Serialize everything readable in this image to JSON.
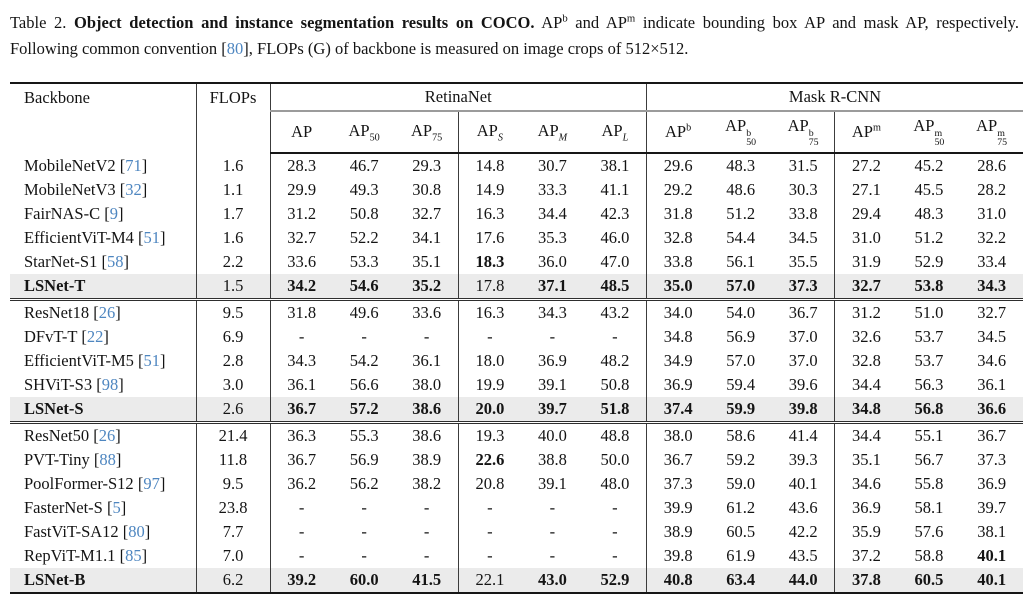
{
  "colors": {
    "cite_blue": "#4e86c0",
    "row_highlight": "#ebebeb",
    "rule_dark": "#161616",
    "rule_gray": "#9b9b9b"
  },
  "caption": {
    "segments": [
      {
        "t": "plain",
        "v": "Table 2.  "
      },
      {
        "t": "bold",
        "v": "Object detection and instance segmentation results on COCO."
      },
      {
        "t": "plain",
        "v": " AP"
      },
      {
        "t": "sup",
        "v": "b"
      },
      {
        "t": "plain",
        "v": " and AP"
      },
      {
        "t": "sup",
        "v": "m"
      },
      {
        "t": "plain",
        "v": " indicate bounding box AP and mask AP, respectively. Following common convention ["
      },
      {
        "t": "cite",
        "v": "80"
      },
      {
        "t": "plain",
        "v": "], FLOPs (G) of backbone is measured on image crops of 512×512."
      }
    ]
  },
  "table": {
    "col_headers": {
      "backbone": "Backbone",
      "flops": "FLOPs",
      "retinanet": "RetinaNet",
      "maskrcnn": "Mask R-CNN",
      "metrics": [
        {
          "base": "AP"
        },
        {
          "base": "AP",
          "sub": "50"
        },
        {
          "base": "AP",
          "sub": "75"
        },
        {
          "base": "AP",
          "sub": "S",
          "subItalic": true
        },
        {
          "base": "AP",
          "sub": "M",
          "subItalic": true
        },
        {
          "base": "AP",
          "sub": "L",
          "subItalic": true
        },
        {
          "base": "AP",
          "sup": "b"
        },
        {
          "base": "AP",
          "sup": "b",
          "sub": "50"
        },
        {
          "base": "AP",
          "sup": "b",
          "sub": "75"
        },
        {
          "base": "AP",
          "sup": "m"
        },
        {
          "base": "AP",
          "sup": "m",
          "sub": "50"
        },
        {
          "base": "AP",
          "sup": "m",
          "sub": "75"
        }
      ]
    },
    "groups": [
      {
        "rows": [
          {
            "name": "MobileNetV2",
            "cite": "71",
            "flops": "1.6",
            "vals": [
              "28.3",
              "46.7",
              "29.3",
              "14.8",
              "30.7",
              "38.1",
              "29.6",
              "48.3",
              "31.5",
              "27.2",
              "45.2",
              "28.6"
            ]
          },
          {
            "name": "MobileNetV3",
            "cite": "32",
            "flops": "1.1",
            "vals": [
              "29.9",
              "49.3",
              "30.8",
              "14.9",
              "33.3",
              "41.1",
              "29.2",
              "48.6",
              "30.3",
              "27.1",
              "45.5",
              "28.2"
            ]
          },
          {
            "name": "FairNAS-C",
            "cite": "9",
            "flops": "1.7",
            "vals": [
              "31.2",
              "50.8",
              "32.7",
              "16.3",
              "34.4",
              "42.3",
              "31.8",
              "51.2",
              "33.8",
              "29.4",
              "48.3",
              "31.0"
            ]
          },
          {
            "name": "EfficientViT-M4",
            "cite": "51",
            "flops": "1.6",
            "vals": [
              "32.7",
              "52.2",
              "34.1",
              "17.6",
              "35.3",
              "46.0",
              "32.8",
              "54.4",
              "34.5",
              "31.0",
              "51.2",
              "32.2"
            ]
          },
          {
            "name": "StarNet-S1",
            "cite": "58",
            "flops": "2.2",
            "vals": [
              "33.6",
              "53.3",
              "35.1",
              {
                "v": "18.3",
                "b": 1
              },
              "36.0",
              "47.0",
              "33.8",
              "56.1",
              "35.5",
              "31.9",
              "52.9",
              "33.4"
            ]
          },
          {
            "name": "LSNet-T",
            "bold": 1,
            "shaded": 1,
            "flops": "1.5",
            "vals": [
              {
                "v": "34.2",
                "b": 1
              },
              {
                "v": "54.6",
                "b": 1
              },
              {
                "v": "35.2",
                "b": 1
              },
              "17.8",
              {
                "v": "37.1",
                "b": 1
              },
              {
                "v": "48.5",
                "b": 1
              },
              {
                "v": "35.0",
                "b": 1
              },
              {
                "v": "57.0",
                "b": 1
              },
              {
                "v": "37.3",
                "b": 1
              },
              {
                "v": "32.7",
                "b": 1
              },
              {
                "v": "53.8",
                "b": 1
              },
              {
                "v": "34.3",
                "b": 1
              }
            ]
          }
        ]
      },
      {
        "rows": [
          {
            "name": "ResNet18",
            "cite": "26",
            "flops": "9.5",
            "vals": [
              "31.8",
              "49.6",
              "33.6",
              "16.3",
              "34.3",
              "43.2",
              "34.0",
              "54.0",
              "36.7",
              "31.2",
              "51.0",
              "32.7"
            ]
          },
          {
            "name": "DFvT-T",
            "cite": "22",
            "flops": "6.9",
            "vals": [
              "-",
              "-",
              "-",
              "-",
              "-",
              "-",
              "34.8",
              "56.9",
              "37.0",
              "32.6",
              "53.7",
              "34.5"
            ]
          },
          {
            "name": "EfficientViT-M5",
            "cite": "51",
            "flops": "2.8",
            "vals": [
              "34.3",
              "54.2",
              "36.1",
              "18.0",
              "36.9",
              "48.2",
              "34.9",
              "57.0",
              "37.0",
              "32.8",
              "53.7",
              "34.6"
            ]
          },
          {
            "name": "SHViT-S3",
            "cite": "98",
            "flops": "3.0",
            "vals": [
              "36.1",
              "56.6",
              "38.0",
              "19.9",
              "39.1",
              "50.8",
              "36.9",
              "59.4",
              "39.6",
              "34.4",
              "56.3",
              "36.1"
            ]
          },
          {
            "name": "LSNet-S",
            "bold": 1,
            "shaded": 1,
            "flops": "2.6",
            "vals": [
              {
                "v": "36.7",
                "b": 1
              },
              {
                "v": "57.2",
                "b": 1
              },
              {
                "v": "38.6",
                "b": 1
              },
              {
                "v": "20.0",
                "b": 1
              },
              {
                "v": "39.7",
                "b": 1
              },
              {
                "v": "51.8",
                "b": 1
              },
              {
                "v": "37.4",
                "b": 1
              },
              {
                "v": "59.9",
                "b": 1
              },
              {
                "v": "39.8",
                "b": 1
              },
              {
                "v": "34.8",
                "b": 1
              },
              {
                "v": "56.8",
                "b": 1
              },
              {
                "v": "36.6",
                "b": 1
              }
            ]
          }
        ]
      },
      {
        "rows": [
          {
            "name": "ResNet50",
            "cite": "26",
            "flops": "21.4",
            "vals": [
              "36.3",
              "55.3",
              "38.6",
              "19.3",
              "40.0",
              "48.8",
              "38.0",
              "58.6",
              "41.4",
              "34.4",
              "55.1",
              "36.7"
            ]
          },
          {
            "name": "PVT-Tiny",
            "cite": "88",
            "flops": "11.8",
            "vals": [
              "36.7",
              "56.9",
              "38.9",
              {
                "v": "22.6",
                "b": 1
              },
              "38.8",
              "50.0",
              "36.7",
              "59.2",
              "39.3",
              "35.1",
              "56.7",
              "37.3"
            ]
          },
          {
            "name": "PoolFormer-S12",
            "cite": "97",
            "flops": "9.5",
            "vals": [
              "36.2",
              "56.2",
              "38.2",
              "20.8",
              "39.1",
              "48.0",
              "37.3",
              "59.0",
              "40.1",
              "34.6",
              "55.8",
              "36.9"
            ]
          },
          {
            "name": "FasterNet-S",
            "cite": "5",
            "flops": "23.8",
            "vals": [
              "-",
              "-",
              "-",
              "-",
              "-",
              "-",
              "39.9",
              "61.2",
              "43.6",
              "36.9",
              "58.1",
              "39.7"
            ]
          },
          {
            "name": "FastViT-SA12",
            "cite": "80",
            "flops": "7.7",
            "vals": [
              "-",
              "-",
              "-",
              "-",
              "-",
              "-",
              "38.9",
              "60.5",
              "42.2",
              "35.9",
              "57.6",
              "38.1"
            ]
          },
          {
            "name": "RepViT-M1.1",
            "cite": "85",
            "flops": "7.0",
            "vals": [
              "-",
              "-",
              "-",
              "-",
              "-",
              "-",
              "39.8",
              "61.9",
              "43.5",
              "37.2",
              "58.8",
              {
                "v": "40.1",
                "b": 1
              }
            ]
          },
          {
            "name": "LSNet-B",
            "bold": 1,
            "shaded": 1,
            "flops": "6.2",
            "vals": [
              {
                "v": "39.2",
                "b": 1
              },
              {
                "v": "60.0",
                "b": 1
              },
              {
                "v": "41.5",
                "b": 1
              },
              "22.1",
              {
                "v": "43.0",
                "b": 1
              },
              {
                "v": "52.9",
                "b": 1
              },
              {
                "v": "40.8",
                "b": 1
              },
              {
                "v": "63.4",
                "b": 1
              },
              {
                "v": "44.0",
                "b": 1
              },
              {
                "v": "37.8",
                "b": 1
              },
              {
                "v": "60.5",
                "b": 1
              },
              {
                "v": "40.1",
                "b": 1
              }
            ]
          }
        ]
      }
    ]
  }
}
